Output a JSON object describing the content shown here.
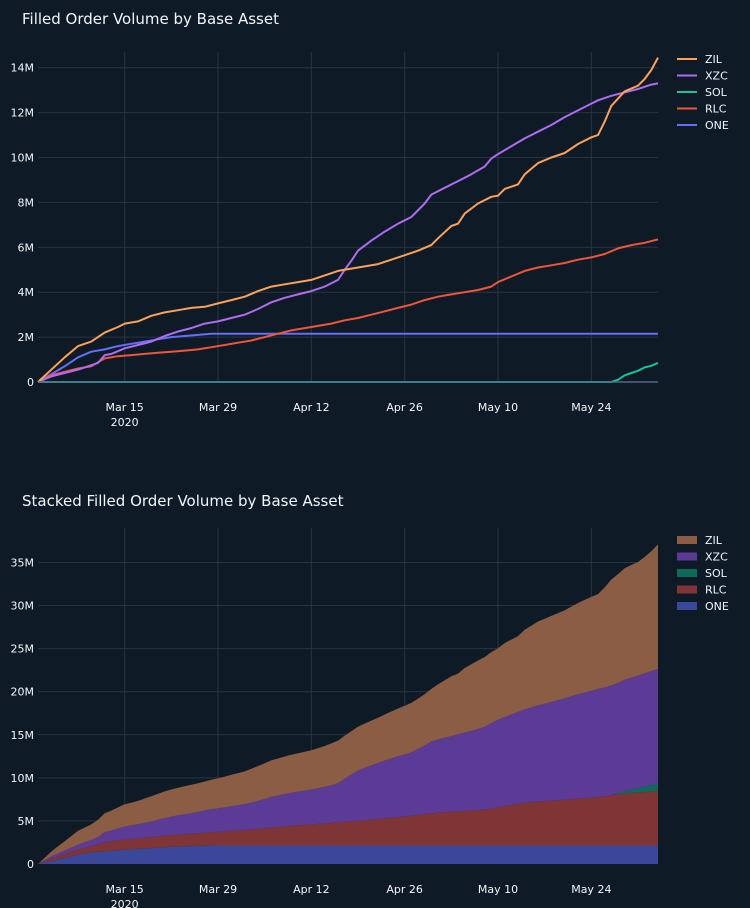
{
  "chart_data": [
    {
      "type": "line",
      "title": "Filled Order Volume by Base Asset",
      "xlabel": "",
      "ylabel": "",
      "x_start": "2020-03-02",
      "x_end": "2020-05-31",
      "x_ticks": [
        {
          "label": "Mar 15",
          "sublabel": "2020",
          "day": 13
        },
        {
          "label": "Mar 29",
          "sublabel": "",
          "day": 27
        },
        {
          "label": "Apr 12",
          "sublabel": "",
          "day": 41
        },
        {
          "label": "Apr 26",
          "sublabel": "",
          "day": 55
        },
        {
          "label": "May 10",
          "sublabel": "",
          "day": 69
        },
        {
          "label": "May 24",
          "sublabel": "",
          "day": 83
        }
      ],
      "ylim": [
        0,
        14700000
      ],
      "y_ticks": [
        {
          "value": 0,
          "label": "0"
        },
        {
          "value": 2000000,
          "label": "2M"
        },
        {
          "value": 4000000,
          "label": "4M"
        },
        {
          "value": 6000000,
          "label": "6M"
        },
        {
          "value": 8000000,
          "label": "8M"
        },
        {
          "value": 10000000,
          "label": "10M"
        },
        {
          "value": 12000000,
          "label": "12M"
        },
        {
          "value": 14000000,
          "label": "14M"
        }
      ],
      "series": [
        {
          "name": "ZIL",
          "color": "#fea15b",
          "points": [
            [
              0,
              0
            ],
            [
              2,
              0.55
            ],
            [
              4,
              1.1
            ],
            [
              6,
              1.6
            ],
            [
              8,
              1.8
            ],
            [
              10,
              2.2
            ],
            [
              12,
              2.45
            ],
            [
              13,
              2.6
            ],
            [
              15,
              2.7
            ],
            [
              17,
              2.95
            ],
            [
              19,
              3.1
            ],
            [
              21,
              3.2
            ],
            [
              23,
              3.3
            ],
            [
              25,
              3.35
            ],
            [
              27,
              3.5
            ],
            [
              29,
              3.65
            ],
            [
              31,
              3.8
            ],
            [
              33,
              4.05
            ],
            [
              35,
              4.25
            ],
            [
              37,
              4.35
            ],
            [
              39,
              4.45
            ],
            [
              41,
              4.55
            ],
            [
              43,
              4.75
            ],
            [
              45,
              4.95
            ],
            [
              47,
              5.05
            ],
            [
              49,
              5.15
            ],
            [
              51,
              5.25
            ],
            [
              53,
              5.45
            ],
            [
              55,
              5.65
            ],
            [
              57,
              5.85
            ],
            [
              59,
              6.1
            ],
            [
              60,
              6.4
            ],
            [
              62,
              6.95
            ],
            [
              63,
              7.05
            ],
            [
              64,
              7.5
            ],
            [
              66,
              7.95
            ],
            [
              68,
              8.25
            ],
            [
              69,
              8.3
            ],
            [
              70,
              8.6
            ],
            [
              72,
              8.8
            ],
            [
              73,
              9.25
            ],
            [
              75,
              9.75
            ],
            [
              77,
              10.0
            ],
            [
              79,
              10.2
            ],
            [
              81,
              10.6
            ],
            [
              83,
              10.9
            ],
            [
              84,
              11.0
            ],
            [
              85,
              11.6
            ],
            [
              86,
              12.3
            ],
            [
              88,
              12.95
            ],
            [
              90,
              13.2
            ],
            [
              91,
              13.5
            ],
            [
              92,
              13.9
            ],
            [
              93,
              14.45
            ]
          ]
        },
        {
          "name": "XZC",
          "color": "#b06bf2",
          "points": [
            [
              0,
              0
            ],
            [
              2,
              0.25
            ],
            [
              4,
              0.4
            ],
            [
              6,
              0.55
            ],
            [
              8,
              0.75
            ],
            [
              9,
              0.85
            ],
            [
              10,
              1.2
            ],
            [
              11,
              1.25
            ],
            [
              13,
              1.5
            ],
            [
              15,
              1.65
            ],
            [
              17,
              1.8
            ],
            [
              19,
              2.05
            ],
            [
              21,
              2.25
            ],
            [
              23,
              2.4
            ],
            [
              25,
              2.6
            ],
            [
              27,
              2.7
            ],
            [
              29,
              2.85
            ],
            [
              31,
              3.0
            ],
            [
              33,
              3.25
            ],
            [
              35,
              3.55
            ],
            [
              37,
              3.75
            ],
            [
              39,
              3.9
            ],
            [
              41,
              4.05
            ],
            [
              43,
              4.25
            ],
            [
              45,
              4.55
            ],
            [
              46,
              5.0
            ],
            [
              47,
              5.4
            ],
            [
              48,
              5.85
            ],
            [
              50,
              6.3
            ],
            [
              52,
              6.7
            ],
            [
              54,
              7.05
            ],
            [
              56,
              7.35
            ],
            [
              58,
              7.95
            ],
            [
              59,
              8.35
            ],
            [
              61,
              8.65
            ],
            [
              63,
              8.95
            ],
            [
              65,
              9.25
            ],
            [
              67,
              9.6
            ],
            [
              68,
              9.95
            ],
            [
              69,
              10.15
            ],
            [
              71,
              10.5
            ],
            [
              73,
              10.85
            ],
            [
              75,
              11.15
            ],
            [
              77,
              11.45
            ],
            [
              79,
              11.8
            ],
            [
              81,
              12.1
            ],
            [
              83,
              12.4
            ],
            [
              84,
              12.55
            ],
            [
              86,
              12.75
            ],
            [
              88,
              12.9
            ],
            [
              90,
              13.05
            ],
            [
              92,
              13.25
            ],
            [
              93,
              13.3
            ]
          ]
        },
        {
          "name": "SOL",
          "color": "#1bc19a",
          "points": [
            [
              0,
              0
            ],
            [
              86,
              0
            ],
            [
              87,
              0.1
            ],
            [
              88,
              0.3
            ],
            [
              89,
              0.4
            ],
            [
              90,
              0.5
            ],
            [
              91,
              0.65
            ],
            [
              92,
              0.72
            ],
            [
              93,
              0.85
            ]
          ]
        },
        {
          "name": "RLC",
          "color": "#ef553b",
          "points": [
            [
              0,
              0
            ],
            [
              2,
              0.3
            ],
            [
              4,
              0.45
            ],
            [
              6,
              0.6
            ],
            [
              8,
              0.7
            ],
            [
              10,
              1.05
            ],
            [
              12,
              1.15
            ],
            [
              14,
              1.2
            ],
            [
              16,
              1.25
            ],
            [
              18,
              1.3
            ],
            [
              20,
              1.35
            ],
            [
              22,
              1.4
            ],
            [
              24,
              1.45
            ],
            [
              26,
              1.55
            ],
            [
              28,
              1.65
            ],
            [
              30,
              1.75
            ],
            [
              32,
              1.85
            ],
            [
              34,
              2.0
            ],
            [
              36,
              2.15
            ],
            [
              38,
              2.3
            ],
            [
              40,
              2.4
            ],
            [
              42,
              2.5
            ],
            [
              44,
              2.6
            ],
            [
              46,
              2.75
            ],
            [
              48,
              2.85
            ],
            [
              50,
              3.0
            ],
            [
              52,
              3.15
            ],
            [
              54,
              3.3
            ],
            [
              56,
              3.45
            ],
            [
              58,
              3.65
            ],
            [
              60,
              3.8
            ],
            [
              62,
              3.9
            ],
            [
              64,
              4.0
            ],
            [
              66,
              4.1
            ],
            [
              68,
              4.25
            ],
            [
              69,
              4.45
            ],
            [
              71,
              4.7
            ],
            [
              73,
              4.95
            ],
            [
              75,
              5.1
            ],
            [
              77,
              5.2
            ],
            [
              79,
              5.3
            ],
            [
              81,
              5.45
            ],
            [
              83,
              5.55
            ],
            [
              85,
              5.7
            ],
            [
              87,
              5.95
            ],
            [
              89,
              6.1
            ],
            [
              91,
              6.2
            ],
            [
              93,
              6.35
            ]
          ]
        },
        {
          "name": "ONE",
          "color": "#636efa",
          "points": [
            [
              0,
              0
            ],
            [
              2,
              0.35
            ],
            [
              4,
              0.7
            ],
            [
              6,
              1.1
            ],
            [
              8,
              1.35
            ],
            [
              10,
              1.45
            ],
            [
              12,
              1.6
            ],
            [
              14,
              1.7
            ],
            [
              16,
              1.8
            ],
            [
              18,
              1.9
            ],
            [
              20,
              2.0
            ],
            [
              22,
              2.05
            ],
            [
              24,
              2.1
            ],
            [
              26,
              2.15
            ],
            [
              93,
              2.15
            ]
          ]
        }
      ]
    },
    {
      "type": "area",
      "stacked": true,
      "title": "Stacked Filled Order Volume by Base Asset",
      "xlabel": "",
      "ylabel": "",
      "x_start": "2020-03-02",
      "x_end": "2020-05-31",
      "x_ticks": [
        {
          "label": "Mar 15",
          "sublabel": "2020",
          "day": 13
        },
        {
          "label": "Mar 29",
          "sublabel": "",
          "day": 27
        },
        {
          "label": "Apr 12",
          "sublabel": "",
          "day": 41
        },
        {
          "label": "Apr 26",
          "sublabel": "",
          "day": 55
        },
        {
          "label": "May 10",
          "sublabel": "",
          "day": 69
        },
        {
          "label": "May 24",
          "sublabel": "",
          "day": 83
        }
      ],
      "ylim": [
        0,
        39000000
      ],
      "y_ticks": [
        {
          "value": 0,
          "label": "0"
        },
        {
          "value": 5000000,
          "label": "5M"
        },
        {
          "value": 10000000,
          "label": "10M"
        },
        {
          "value": 15000000,
          "label": "15M"
        },
        {
          "value": 20000000,
          "label": "20M"
        },
        {
          "value": 25000000,
          "label": "25M"
        },
        {
          "value": 30000000,
          "label": "30M"
        },
        {
          "value": 35000000,
          "label": "35M"
        }
      ],
      "legend_series": [
        {
          "name": "ZIL",
          "color": "#fea15b"
        },
        {
          "name": "XZC",
          "color": "#b06bf2"
        },
        {
          "name": "SOL",
          "color": "#1bc19a"
        },
        {
          "name": "RLC",
          "color": "#ef553b"
        },
        {
          "name": "ONE",
          "color": "#636efa"
        }
      ]
    }
  ]
}
